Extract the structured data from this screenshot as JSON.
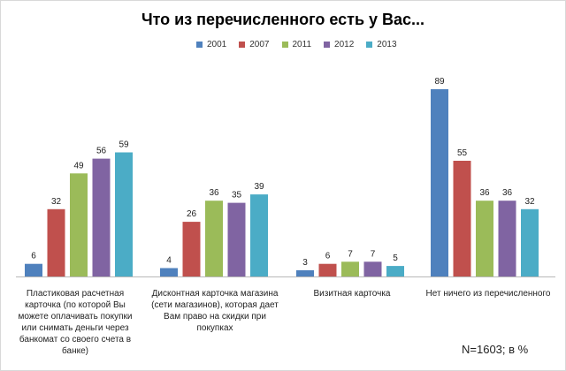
{
  "chart_data": {
    "type": "bar",
    "title": "Что из перечисленного есть у Вас...",
    "categories": [
      "Пластиковая расчетная карточка (по которой Вы можете оплачивать покупки или снимать деньги через банкомат со своего счета в банке)",
      "Дисконтная карточка магазина (сети магазинов), которая дает Вам право на скидки при покупках",
      "Визитная карточка",
      "Нет ничего из перечисленного"
    ],
    "series": [
      {
        "name": "2001",
        "color": "#4F81BD",
        "values": [
          6,
          4,
          3,
          89
        ]
      },
      {
        "name": "2007",
        "color": "#C0504D",
        "values": [
          32,
          26,
          6,
          55
        ]
      },
      {
        "name": "2011",
        "color": "#9BBB59",
        "values": [
          49,
          36,
          7,
          36
        ]
      },
      {
        "name": "2012",
        "color": "#8064A2",
        "values": [
          56,
          35,
          7,
          36
        ]
      },
      {
        "name": "2013",
        "color": "#4BACC6",
        "values": [
          59,
          39,
          5,
          32
        ]
      }
    ],
    "ylim": [
      0,
      90
    ],
    "legend_position": "top",
    "grid": false
  },
  "footnote": "N=1603; в %"
}
